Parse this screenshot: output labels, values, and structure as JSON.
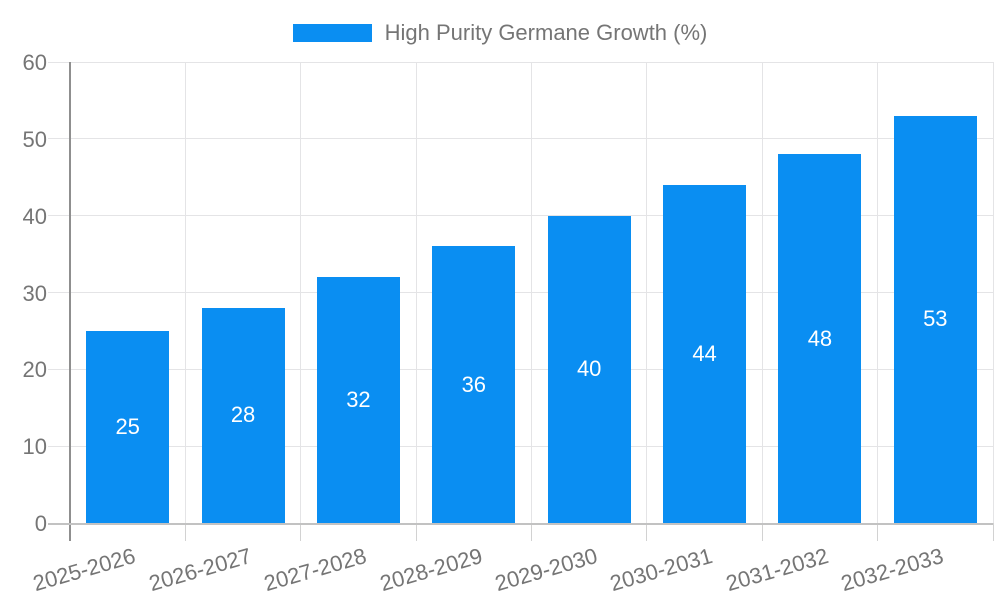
{
  "chart_data": {
    "type": "bar",
    "title": "",
    "legend": [
      "High Purity Germane Growth (%)"
    ],
    "legend_position": "top-center",
    "categories": [
      "2025-2026",
      "2026-2027",
      "2027-2028",
      "2028-2029",
      "2029-2030",
      "2030-2031",
      "2031-2032",
      "2032-2033"
    ],
    "values": [
      25,
      28,
      32,
      36,
      40,
      44,
      48,
      53
    ],
    "value_labels_shown": true,
    "xlabel": "",
    "ylabel": "",
    "ylim": [
      0,
      60
    ],
    "yticks": [
      0,
      10,
      20,
      30,
      40,
      50,
      60
    ],
    "grid": "both",
    "x_label_rotation_deg": -16,
    "bar_color": "#0a8ef2",
    "value_label_color": "#ffffff",
    "axis_text_color": "#757575",
    "colors": {
      "gridline": "#e4e4e6",
      "y_axis_line": "#8f8f8f",
      "x_axis_line": "#c2c2c2",
      "tick_mark": "#d2d2d2"
    }
  }
}
